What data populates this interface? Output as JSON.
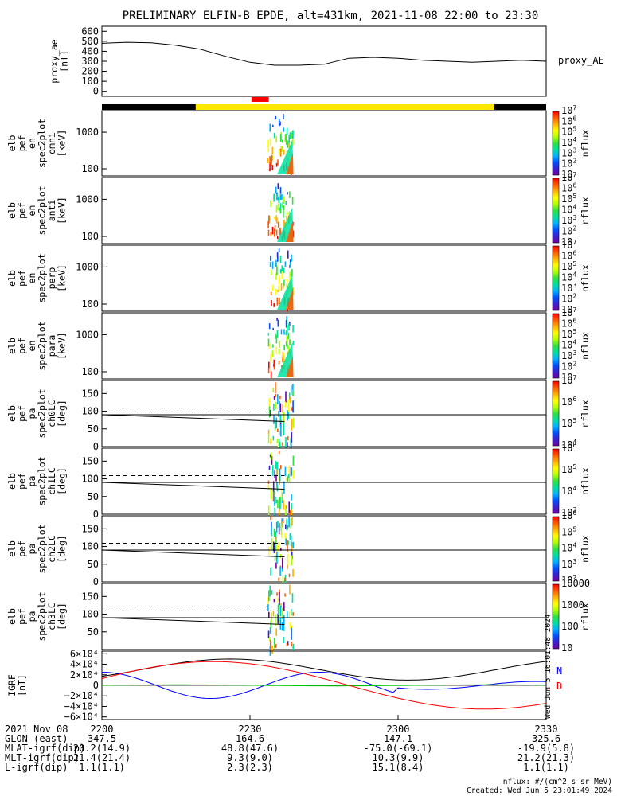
{
  "title": "PRELIMINARY ELFIN-B EPDE, alt=431km, 2021-11-08 22:00 to 23:30",
  "colors": {
    "yellow_bar": "#ffe800",
    "red_marker": "#ff0000",
    "black_bar": "#000000",
    "br_blue": "#0000ff",
    "br_black": "#000000",
    "br_green": "#00cc00",
    "br_red": "#ff0000",
    "dashed": "#000000"
  },
  "chart_data": [
    {
      "type": "line",
      "panel": "proxy_ae",
      "ylabel_lines": [
        "proxy_ae",
        "[nT]"
      ],
      "yticks": [
        "600",
        "500",
        "400",
        "300",
        "200",
        "100",
        "0"
      ],
      "ylim": [
        -50,
        650
      ],
      "series": [
        {
          "name": "proxy_AE",
          "x_min": [
            0,
            5,
            10,
            15,
            20,
            25,
            30,
            35,
            40,
            45,
            50,
            55,
            60,
            65,
            70,
            75,
            80,
            85,
            90
          ],
          "values": [
            480,
            490,
            485,
            460,
            420,
            350,
            290,
            260,
            260,
            270,
            330,
            340,
            330,
            310,
            300,
            290,
            300,
            310,
            300
          ]
        }
      ]
    },
    {
      "type": "heatmap",
      "panel": "elb_pef_en_spec2plot_omni",
      "ylabel_lines": [
        "elb",
        "pef",
        "en",
        "spec2plot",
        "omni",
        "[keV]"
      ],
      "yticks": [
        "1000",
        "100"
      ],
      "yscale": "log",
      "colorbar": {
        "label": "nflux",
        "ticks": [
          "10",
          "10^2",
          "10^3",
          "10^4",
          "10^5",
          "10^6",
          "10^7"
        ]
      }
    },
    {
      "type": "heatmap",
      "panel": "elb_pef_en_spec2plot_anti",
      "ylabel_lines": [
        "elb",
        "pef",
        "en",
        "spec2plot",
        "anti",
        "[keV]"
      ],
      "yticks": [
        "1000",
        "100"
      ],
      "yscale": "log",
      "colorbar": {
        "label": "nflux",
        "ticks": [
          "10",
          "10^2",
          "10^3",
          "10^4",
          "10^5",
          "10^6",
          "10^7"
        ]
      }
    },
    {
      "type": "heatmap",
      "panel": "elb_pef_en_spec2plot_perp",
      "ylabel_lines": [
        "elb",
        "pef",
        "en",
        "spec2plot",
        "perp",
        "[keV]"
      ],
      "yticks": [
        "1000",
        "100"
      ],
      "yscale": "log",
      "colorbar": {
        "label": "nflux",
        "ticks": [
          "10",
          "10^2",
          "10^3",
          "10^4",
          "10^5",
          "10^6",
          "10^7"
        ]
      }
    },
    {
      "type": "heatmap",
      "panel": "elb_pef_en_spec2plot_para",
      "ylabel_lines": [
        "elb",
        "pef",
        "en",
        "spec2plot",
        "para",
        "[keV]"
      ],
      "yticks": [
        "1000",
        "100"
      ],
      "yscale": "log",
      "colorbar": {
        "label": "nflux",
        "ticks": [
          "10",
          "10^2",
          "10^3",
          "10^4",
          "10^5",
          "10^6",
          "10^7"
        ]
      }
    },
    {
      "type": "heatmap",
      "panel": "elb_pef_pa_spec2plot_ch0LC",
      "ylabel_lines": [
        "elb",
        "pef",
        "pa",
        "spec2plot",
        "ch0LC",
        "[deg]"
      ],
      "yticks": [
        "150",
        "100",
        "50",
        "0"
      ],
      "ylim": [
        0,
        180
      ],
      "colorbar": {
        "label": "nflux",
        "ticks": [
          "10^4",
          "10^5",
          "10^6",
          "10^7"
        ]
      }
    },
    {
      "type": "heatmap",
      "panel": "elb_pef_pa_spec2plot_ch1LC",
      "ylabel_lines": [
        "elb",
        "pef",
        "pa",
        "spec2plot",
        "ch1LC",
        "[deg]"
      ],
      "yticks": [
        "150",
        "100",
        "50",
        "0"
      ],
      "ylim": [
        0,
        180
      ],
      "colorbar": {
        "label": "nflux",
        "ticks": [
          "10^3",
          "10^4",
          "10^5",
          "10^6"
        ]
      }
    },
    {
      "type": "heatmap",
      "panel": "elb_pef_pa_spec2plot_ch2LC",
      "ylabel_lines": [
        "elb",
        "pef",
        "pa",
        "spec2plot",
        "ch2LC",
        "[deg]"
      ],
      "yticks": [
        "150",
        "100",
        "50",
        "0"
      ],
      "ylim": [
        0,
        180
      ],
      "colorbar": {
        "label": "nflux",
        "ticks": [
          "10^2",
          "10^3",
          "10^4",
          "10^5",
          "10^6"
        ]
      }
    },
    {
      "type": "heatmap",
      "panel": "elb_pef_pa_spec2plot_ch3LC",
      "ylabel_lines": [
        "elb",
        "pef",
        "pa",
        "spec2plot",
        "ch3LC",
        "[deg]"
      ],
      "yticks": [
        "150",
        "100",
        "50"
      ],
      "ylim": [
        0,
        180
      ],
      "colorbar": {
        "label": "nflux",
        "ticks": [
          "10",
          "100",
          "1000",
          "10000"
        ]
      }
    },
    {
      "type": "line",
      "panel": "IGRF",
      "ylabel_lines": [
        "IGRF",
        "[nT]"
      ],
      "yticks": [
        "6×10⁴",
        "4×10⁴",
        "2×10⁴",
        "0",
        "−2×10⁴",
        "−4×10⁴",
        "−6×10⁴"
      ],
      "ylim": [
        -65000,
        65000
      ],
      "legend": [
        "N",
        "D"
      ]
    }
  ],
  "xaxis": {
    "ticks": [
      "2200",
      "2230",
      "2300",
      "2330"
    ],
    "t_min": [
      0,
      30,
      60,
      90
    ]
  },
  "footer": {
    "date": "2021 Nov 08",
    "rows": [
      {
        "label": "GLON (east)",
        "values": [
          "347.5",
          "164.6",
          "147.1",
          "325.6"
        ]
      },
      {
        "label": "MLAT-igrf(dip)",
        "values": [
          "20.2(14.9)",
          "48.8(47.6)",
          "-75.0(-69.1)",
          "-19.9(5.8)"
        ]
      },
      {
        "label": "MLT-igrf(dip)",
        "values": [
          "21.4(21.4)",
          "9.3(9.0)",
          "10.3(9.9)",
          "21.2(21.3)"
        ]
      },
      {
        "label": "L-igrf(dip)",
        "values": [
          "1.1(1.1)",
          "2.3(2.3)",
          "15.1(8.4)",
          "1.1(1.1)"
        ]
      }
    ],
    "units_note": "nflux: #/(cm^2 s sr MeV)",
    "created": "Created: Wed Jun  5 23:01:49 2024",
    "vertical_stamp": "Wed Jun  5 16:01:48 2024"
  }
}
